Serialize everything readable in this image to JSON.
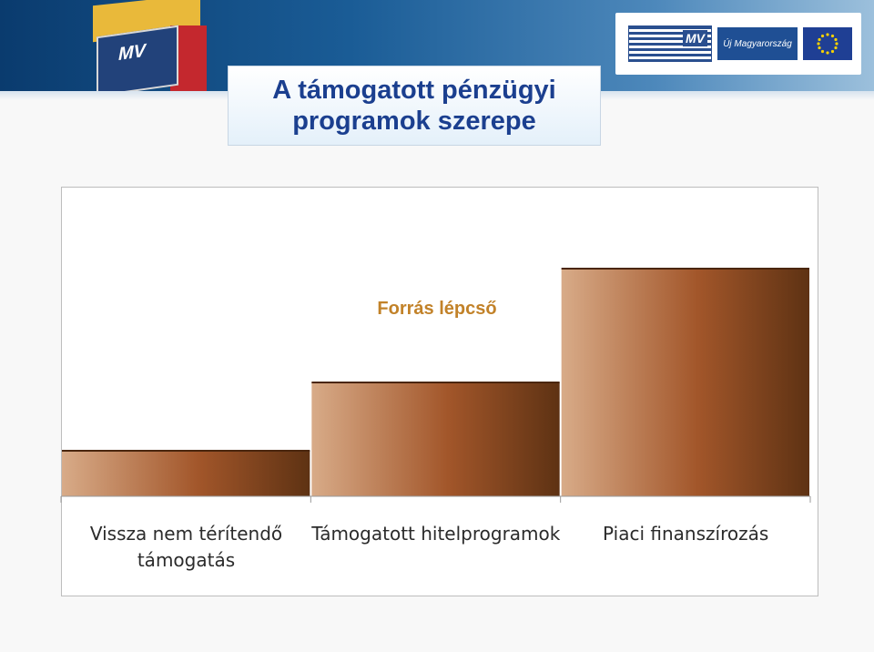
{
  "slide": {
    "title": "A támogatott pénzügyi\nprogramok szerepe"
  },
  "logos": {
    "mvf": "MV",
    "uj": "Új Magyarország"
  },
  "colors": {
    "banner": "#1a5c96",
    "title": "#1b3f8f",
    "chart_title": "#c28229",
    "bar_light": "#d8ab88",
    "bar_mid": "#a2562a",
    "bar_dark": "#5e3213"
  },
  "chart_data": {
    "type": "bar",
    "title": "Forrás lépcső",
    "categories": [
      "Vissza nem térítendő támogatás",
      "Támogatott hitelprogramok",
      "Piaci finanszírozás"
    ],
    "category_lines": [
      [
        "Vissza nem térítendő",
        "támogatás"
      ],
      [
        "Támogatott hitelprogramok"
      ],
      [
        "Piaci finanszírozás"
      ]
    ],
    "values": [
      1,
      2.5,
      5
    ],
    "ylim": [
      0,
      5.1
    ],
    "grid": false,
    "legend": "none"
  }
}
